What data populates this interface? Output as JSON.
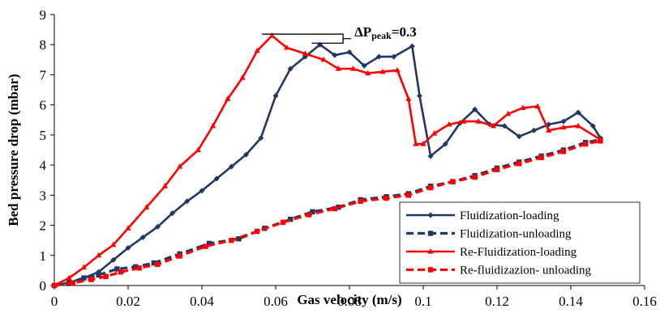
{
  "chart_data": {
    "type": "line",
    "xlabel": "Gas velocity (m/s)",
    "ylabel": "Bed pressure drop (mbar)",
    "xlim": [
      0,
      0.16
    ],
    "ylim": [
      0,
      9
    ],
    "x_ticks": [
      "0",
      "0.02",
      "0.04",
      "0.06",
      "0.08",
      "0.1",
      "0.12",
      "0.14",
      "0.16"
    ],
    "y_ticks": [
      "0",
      "1",
      "2",
      "3",
      "4",
      "5",
      "6",
      "7",
      "8",
      "9"
    ],
    "grid": false,
    "legend_position": "bottom-right",
    "annotation": {
      "delta": "ΔP",
      "subscript": "peak",
      "value": "=0.3",
      "upper_y": 8.35,
      "lower_y": 8.05
    },
    "series": [
      {
        "name": "Fluidization-loading",
        "color": "#1f3864",
        "dash": "solid",
        "marker": "diamond",
        "points": [
          [
            0,
            0
          ],
          [
            0.004,
            0.1
          ],
          [
            0.008,
            0.25
          ],
          [
            0.012,
            0.45
          ],
          [
            0.016,
            0.85
          ],
          [
            0.02,
            1.25
          ],
          [
            0.024,
            1.6
          ],
          [
            0.028,
            1.95
          ],
          [
            0.032,
            2.4
          ],
          [
            0.036,
            2.8
          ],
          [
            0.04,
            3.15
          ],
          [
            0.044,
            3.55
          ],
          [
            0.048,
            3.95
          ],
          [
            0.052,
            4.35
          ],
          [
            0.056,
            4.9
          ],
          [
            0.06,
            6.3
          ],
          [
            0.064,
            7.2
          ],
          [
            0.068,
            7.6
          ],
          [
            0.072,
            8.0
          ],
          [
            0.076,
            7.65
          ],
          [
            0.08,
            7.75
          ],
          [
            0.084,
            7.3
          ],
          [
            0.088,
            7.6
          ],
          [
            0.092,
            7.6
          ],
          [
            0.097,
            7.95
          ],
          [
            0.099,
            6.3
          ],
          [
            0.102,
            4.3
          ],
          [
            0.106,
            4.7
          ],
          [
            0.11,
            5.4
          ],
          [
            0.114,
            5.85
          ],
          [
            0.118,
            5.35
          ],
          [
            0.122,
            5.3
          ],
          [
            0.126,
            4.95
          ],
          [
            0.13,
            5.15
          ],
          [
            0.134,
            5.35
          ],
          [
            0.138,
            5.45
          ],
          [
            0.142,
            5.75
          ],
          [
            0.146,
            5.3
          ],
          [
            0.148,
            4.9
          ]
        ]
      },
      {
        "name": "Fluidization-unloading",
        "color": "#1f3864",
        "dash": "dashed",
        "marker": "square",
        "points": [
          [
            0,
            0
          ],
          [
            0.004,
            0.1
          ],
          [
            0.008,
            0.25
          ],
          [
            0.012,
            0.35
          ],
          [
            0.017,
            0.55
          ],
          [
            0.022,
            0.62
          ],
          [
            0.027,
            0.75
          ],
          [
            0.034,
            1.05
          ],
          [
            0.042,
            1.4
          ],
          [
            0.05,
            1.55
          ],
          [
            0.057,
            1.9
          ],
          [
            0.064,
            2.2
          ],
          [
            0.07,
            2.45
          ],
          [
            0.077,
            2.6
          ],
          [
            0.083,
            2.85
          ],
          [
            0.09,
            2.95
          ],
          [
            0.096,
            3.05
          ],
          [
            0.102,
            3.3
          ],
          [
            0.108,
            3.45
          ],
          [
            0.114,
            3.65
          ],
          [
            0.12,
            3.9
          ],
          [
            0.126,
            4.1
          ],
          [
            0.132,
            4.3
          ],
          [
            0.138,
            4.5
          ],
          [
            0.144,
            4.75
          ],
          [
            0.148,
            4.85
          ]
        ]
      },
      {
        "name": "Re-Fluidization-loading",
        "color": "#ff0000",
        "dash": "solid",
        "marker": "triangle",
        "points": [
          [
            0,
            0
          ],
          [
            0.004,
            0.25
          ],
          [
            0.008,
            0.6
          ],
          [
            0.012,
            1.0
          ],
          [
            0.016,
            1.35
          ],
          [
            0.02,
            1.9
          ],
          [
            0.025,
            2.6
          ],
          [
            0.03,
            3.3
          ],
          [
            0.034,
            3.95
          ],
          [
            0.039,
            4.5
          ],
          [
            0.043,
            5.3
          ],
          [
            0.047,
            6.2
          ],
          [
            0.051,
            6.9
          ],
          [
            0.055,
            7.8
          ],
          [
            0.059,
            8.3
          ],
          [
            0.063,
            7.9
          ],
          [
            0.068,
            7.7
          ],
          [
            0.073,
            7.5
          ],
          [
            0.077,
            7.2
          ],
          [
            0.081,
            7.2
          ],
          [
            0.085,
            7.05
          ],
          [
            0.089,
            7.1
          ],
          [
            0.093,
            7.15
          ],
          [
            0.096,
            6.2
          ],
          [
            0.098,
            4.7
          ],
          [
            0.1,
            4.7
          ],
          [
            0.103,
            5.05
          ],
          [
            0.107,
            5.35
          ],
          [
            0.111,
            5.45
          ],
          [
            0.115,
            5.45
          ],
          [
            0.119,
            5.3
          ],
          [
            0.123,
            5.7
          ],
          [
            0.127,
            5.9
          ],
          [
            0.131,
            5.95
          ],
          [
            0.134,
            5.15
          ],
          [
            0.138,
            5.25
          ],
          [
            0.142,
            5.3
          ],
          [
            0.148,
            4.85
          ]
        ]
      },
      {
        "name": "Re-fluidizazion- unloading",
        "color": "#ff0000",
        "dash": "dashed",
        "marker": "square",
        "points": [
          [
            0,
            0
          ],
          [
            0.005,
            0.08
          ],
          [
            0.01,
            0.2
          ],
          [
            0.014,
            0.3
          ],
          [
            0.018,
            0.45
          ],
          [
            0.023,
            0.58
          ],
          [
            0.028,
            0.7
          ],
          [
            0.034,
            0.98
          ],
          [
            0.041,
            1.3
          ],
          [
            0.048,
            1.5
          ],
          [
            0.055,
            1.8
          ],
          [
            0.062,
            2.1
          ],
          [
            0.069,
            2.35
          ],
          [
            0.076,
            2.55
          ],
          [
            0.083,
            2.8
          ],
          [
            0.09,
            2.9
          ],
          [
            0.096,
            3.0
          ],
          [
            0.102,
            3.25
          ],
          [
            0.108,
            3.45
          ],
          [
            0.114,
            3.6
          ],
          [
            0.12,
            3.85
          ],
          [
            0.126,
            4.05
          ],
          [
            0.132,
            4.25
          ],
          [
            0.138,
            4.45
          ],
          [
            0.144,
            4.7
          ],
          [
            0.148,
            4.8
          ]
        ]
      }
    ]
  }
}
